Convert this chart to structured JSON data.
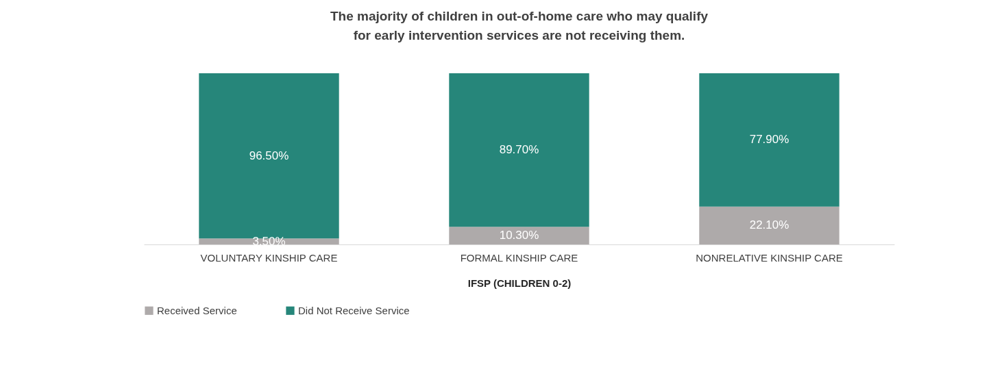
{
  "chart_data": {
    "type": "bar",
    "title": "The majority of children in out-of-home care who may qualify\nfor early intervention services are not receiving them.",
    "xlabel": "IFSP (CHILDREN 0-2)",
    "categories": [
      "VOLUNTARY KINSHIP CARE",
      "FORMAL KINSHIP CARE",
      "NONRELATIVE KINSHIP CARE"
    ],
    "stacked": true,
    "legend": "bottom",
    "series": [
      {
        "name": "Received Service",
        "color": "#aeaaaa",
        "values": [
          3.5,
          10.3,
          22.1
        ],
        "value_labels": [
          "3.50%",
          "10.30%",
          "22.10%"
        ]
      },
      {
        "name": "Did Not Receive Service",
        "color": "#26867a",
        "values": [
          96.5,
          89.7,
          77.9
        ],
        "value_labels": [
          "96.50%",
          "89.70%",
          "77.90%"
        ]
      }
    ]
  }
}
